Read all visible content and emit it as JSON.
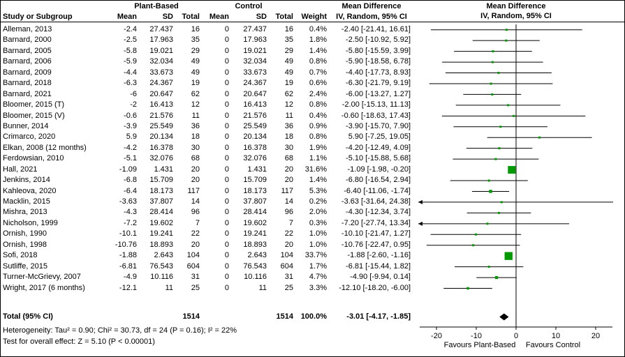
{
  "header": {
    "study": "Study or Subgroup",
    "group1": "Plant-Based",
    "group2": "Control",
    "mean": "Mean",
    "sd": "SD",
    "total": "Total",
    "weight": "Weight",
    "effect_line1": "Mean Difference",
    "effect_line2": "IV, Random, 95% CI"
  },
  "chart_data": {
    "type": "forest",
    "effect_measure": "Mean Difference",
    "model": "IV, Random, 95% CI",
    "studies": [
      {
        "name": "Alleman, 2013",
        "mean": "-2.4",
        "sd": "27.437",
        "n": "16",
        "c_mean": "0",
        "c_sd": "27.437",
        "c_n": "16",
        "weight": "0.4%",
        "ci": "-2.40 [-21.41, 16.61]",
        "md": -2.4,
        "lo": -21.41,
        "hi": 16.61,
        "w": 0.4
      },
      {
        "name": "Barnard, 2000",
        "mean": "-2.5",
        "sd": "17.963",
        "n": "35",
        "c_mean": "0",
        "c_sd": "17.963",
        "c_n": "35",
        "weight": "1.8%",
        "ci": "-2.50 [-10.92, 5.92]",
        "md": -2.5,
        "lo": -10.92,
        "hi": 5.92,
        "w": 1.8
      },
      {
        "name": "Barnard, 2005",
        "mean": "-5.8",
        "sd": "19.021",
        "n": "29",
        "c_mean": "0",
        "c_sd": "19.021",
        "c_n": "29",
        "weight": "1.4%",
        "ci": "-5.80 [-15.59, 3.99]",
        "md": -5.8,
        "lo": -15.59,
        "hi": 3.99,
        "w": 1.4
      },
      {
        "name": "Barnard, 2006",
        "mean": "-5.9",
        "sd": "32.034",
        "n": "49",
        "c_mean": "0",
        "c_sd": "32.034",
        "c_n": "49",
        "weight": "0.8%",
        "ci": "-5.90 [-18.58, 6.78]",
        "md": -5.9,
        "lo": -18.58,
        "hi": 6.78,
        "w": 0.8
      },
      {
        "name": "Barnard, 2009",
        "mean": "-4.4",
        "sd": "33.673",
        "n": "49",
        "c_mean": "0",
        "c_sd": "33.673",
        "c_n": "49",
        "weight": "0.7%",
        "ci": "-4.40 [-17.73, 8.93]",
        "md": -4.4,
        "lo": -17.73,
        "hi": 8.93,
        "w": 0.7
      },
      {
        "name": "Barnard, 2018",
        "mean": "-6.3",
        "sd": "24.367",
        "n": "19",
        "c_mean": "0",
        "c_sd": "24.367",
        "c_n": "19",
        "weight": "0.6%",
        "ci": "-6.30 [-21.79, 9.19]",
        "md": -6.3,
        "lo": -21.79,
        "hi": 9.19,
        "w": 0.6
      },
      {
        "name": "Barnard, 2021",
        "mean": "-6",
        "sd": "20.647",
        "n": "62",
        "c_mean": "0",
        "c_sd": "20.647",
        "c_n": "62",
        "weight": "2.4%",
        "ci": "-6.00 [-13.27, 1.27]",
        "md": -6,
        "lo": -13.27,
        "hi": 1.27,
        "w": 2.4
      },
      {
        "name": "Bloomer, 2015 (T)",
        "mean": "-2",
        "sd": "16.413",
        "n": "12",
        "c_mean": "0",
        "c_sd": "16.413",
        "c_n": "12",
        "weight": "0.8%",
        "ci": "-2.00 [-15.13, 11.13]",
        "md": -2,
        "lo": -15.13,
        "hi": 11.13,
        "w": 0.8
      },
      {
        "name": "Bloomer, 2015 (V)",
        "mean": "-0.6",
        "sd": "21.576",
        "n": "11",
        "c_mean": "0",
        "c_sd": "21.576",
        "c_n": "11",
        "weight": "0.4%",
        "ci": "-0.60 [-18.63, 17.43]",
        "md": -0.6,
        "lo": -18.63,
        "hi": 17.43,
        "w": 0.4
      },
      {
        "name": "Bunner, 2014",
        "mean": "-3.9",
        "sd": "25.549",
        "n": "36",
        "c_mean": "0",
        "c_sd": "25.549",
        "c_n": "36",
        "weight": "0.9%",
        "ci": "-3.90 [-15.70, 7.90]",
        "md": -3.9,
        "lo": -15.7,
        "hi": 7.9,
        "w": 0.9
      },
      {
        "name": "Crimarco, 2020",
        "mean": "5.9",
        "sd": "20.134",
        "n": "18",
        "c_mean": "0",
        "c_sd": "20.134",
        "c_n": "18",
        "weight": "0.8%",
        "ci": "5.90 [-7.25, 19.05]",
        "md": 5.9,
        "lo": -7.25,
        "hi": 19.05,
        "w": 0.8
      },
      {
        "name": "Elkan, 2008 (12 months)",
        "mean": "-4.2",
        "sd": "16.378",
        "n": "30",
        "c_mean": "0",
        "c_sd": "16.378",
        "c_n": "30",
        "weight": "1.9%",
        "ci": "-4.20 [-12.49, 4.09]",
        "md": -4.2,
        "lo": -12.49,
        "hi": 4.09,
        "w": 1.9
      },
      {
        "name": "Ferdowsian, 2010",
        "mean": "-5.1",
        "sd": "32.076",
        "n": "68",
        "c_mean": "0",
        "c_sd": "32.076",
        "c_n": "68",
        "weight": "1.1%",
        "ci": "-5.10 [-15.88, 5.68]",
        "md": -5.1,
        "lo": -15.88,
        "hi": 5.68,
        "w": 1.1
      },
      {
        "name": "Hall, 2021",
        "mean": "-1.09",
        "sd": "1.431",
        "n": "20",
        "c_mean": "0",
        "c_sd": "1.431",
        "c_n": "20",
        "weight": "31.6%",
        "ci": "-1.09 [-1.98, -0.20]",
        "md": -1.09,
        "lo": -1.98,
        "hi": -0.2,
        "w": 31.6
      },
      {
        "name": "Jenkins, 2014",
        "mean": "-6.8",
        "sd": "15.709",
        "n": "20",
        "c_mean": "0",
        "c_sd": "15.709",
        "c_n": "20",
        "weight": "1.4%",
        "ci": "-6.80 [-16.54, 2.94]",
        "md": -6.8,
        "lo": -16.54,
        "hi": 2.94,
        "w": 1.4
      },
      {
        "name": "Kahleova, 2020",
        "mean": "-6.4",
        "sd": "18.173",
        "n": "117",
        "c_mean": "0",
        "c_sd": "18.173",
        "c_n": "117",
        "weight": "5.3%",
        "ci": "-6.40 [-11.06, -1.74]",
        "md": -6.4,
        "lo": -11.06,
        "hi": -1.74,
        "w": 5.3
      },
      {
        "name": "Macklin, 2015",
        "mean": "-3.63",
        "sd": "37.807",
        "n": "14",
        "c_mean": "0",
        "c_sd": "37.807",
        "c_n": "14",
        "weight": "0.2%",
        "ci": "-3.63 [-31.64, 24.38]",
        "md": -3.63,
        "lo": -31.64,
        "hi": 24.38,
        "w": 0.2
      },
      {
        "name": "Mishra, 2013",
        "mean": "-4.3",
        "sd": "28.414",
        "n": "96",
        "c_mean": "0",
        "c_sd": "28.414",
        "c_n": "96",
        "weight": "2.0%",
        "ci": "-4.30 [-12.34, 3.74]",
        "md": -4.3,
        "lo": -12.34,
        "hi": 3.74,
        "w": 2.0
      },
      {
        "name": "Nicholson, 1999",
        "mean": "-7.2",
        "sd": "19.602",
        "n": "7",
        "c_mean": "0",
        "c_sd": "19.602",
        "c_n": "7",
        "weight": "0.3%",
        "ci": "-7.20 [-27.74, 13.34]",
        "md": -7.2,
        "lo": -27.74,
        "hi": 13.34,
        "w": 0.3
      },
      {
        "name": "Ornish, 1990",
        "mean": "-10.1",
        "sd": "19.241",
        "n": "22",
        "c_mean": "0",
        "c_sd": "19.241",
        "c_n": "22",
        "weight": "1.0%",
        "ci": "-10.10 [-21.47, 1.27]",
        "md": -10.1,
        "lo": -21.47,
        "hi": 1.27,
        "w": 1.0
      },
      {
        "name": "Ornish, 1998",
        "mean": "-10.76",
        "sd": "18.893",
        "n": "20",
        "c_mean": "0",
        "c_sd": "18.893",
        "c_n": "20",
        "weight": "1.0%",
        "ci": "-10.76 [-22.47, 0.95]",
        "md": -10.76,
        "lo": -22.47,
        "hi": 0.95,
        "w": 1.0
      },
      {
        "name": "Sofi, 2018",
        "mean": "-1.88",
        "sd": "2.643",
        "n": "104",
        "c_mean": "0",
        "c_sd": "2.643",
        "c_n": "104",
        "weight": "33.7%",
        "ci": "-1.88 [-2.60, -1.16]",
        "md": -1.88,
        "lo": -2.6,
        "hi": -1.16,
        "w": 33.7
      },
      {
        "name": "Sutliffe, 2015",
        "mean": "-6.81",
        "sd": "76.543",
        "n": "604",
        "c_mean": "0",
        "c_sd": "76.543",
        "c_n": "604",
        "weight": "1.7%",
        "ci": "-6.81 [-15.44, 1.82]",
        "md": -6.81,
        "lo": -15.44,
        "hi": 1.82,
        "w": 1.7
      },
      {
        "name": "Turner-McGrievy, 2007",
        "mean": "-4.9",
        "sd": "10.116",
        "n": "31",
        "c_mean": "0",
        "c_sd": "10.116",
        "c_n": "31",
        "weight": "4.7%",
        "ci": "-4.90 [-9.94, 0.14]",
        "md": -4.9,
        "lo": -9.94,
        "hi": 0.14,
        "w": 4.7
      },
      {
        "name": "Wright, 2017 (6 months)",
        "mean": "-12.1",
        "sd": "11",
        "n": "25",
        "c_mean": "0",
        "c_sd": "11",
        "c_n": "25",
        "weight": "3.3%",
        "ci": "-12.10 [-18.20, -6.00]",
        "md": -12.1,
        "lo": -18.2,
        "hi": -6.0,
        "w": 3.3
      }
    ],
    "total": {
      "label": "Total (95% CI)",
      "n": "1514",
      "c_n": "1514",
      "weight": "100.0%",
      "ci": "-3.01 [-4.17, -1.85]",
      "md": -3.01,
      "lo": -4.17,
      "hi": -1.85
    },
    "heterogeneity": "Heterogeneity: Tau² = 0.90; Chi² = 30.73, df = 24 (P = 0.16); I² = 22%",
    "overall_effect": "Test for overall effect: Z = 5.10 (P < 0.00001)",
    "axis": {
      "ticks": [
        -20,
        -10,
        0,
        10,
        20
      ],
      "range": [
        -24.6,
        24.6
      ],
      "favours_left": "Favours Plant-Based",
      "favours_right": "Favours Control"
    },
    "colors": {
      "marker": "#009900",
      "line": "#000000",
      "diamond": "#000000"
    }
  }
}
